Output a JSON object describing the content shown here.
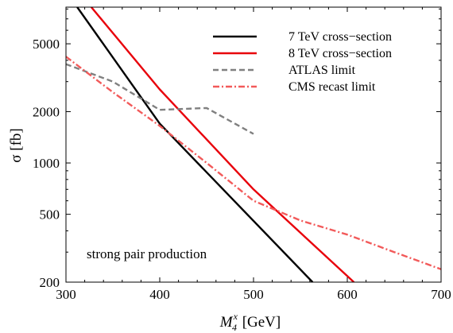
{
  "chart_data": {
    "type": "line",
    "title": "",
    "xlabel": "M",
    "xlabel_sub": "4",
    "xlabel_sup": "x",
    "xlabel_unit": " [GeV]",
    "ylabel": "σ [fb]",
    "xlim": [
      300,
      700
    ],
    "ylim": [
      200,
      8200
    ],
    "yscale": "log",
    "x_ticks": [
      300,
      400,
      500,
      600,
      700
    ],
    "y_ticks": [
      200,
      500,
      1000,
      2000,
      5000
    ],
    "legend_position": "top-right",
    "annotation": "strong pair production",
    "series": [
      {
        "name": "7 TeV cross−section",
        "color": "#000000",
        "dash": "solid",
        "x": [
          312,
          400,
          563
        ],
        "y": [
          8200,
          1700,
          200
        ]
      },
      {
        "name": "8 TeV  cross−section",
        "color": "#e8000b",
        "dash": "solid",
        "x": [
          327,
          400,
          500,
          607
        ],
        "y": [
          8200,
          2700,
          700,
          200
        ]
      },
      {
        "name": "ATLAS limit",
        "color": "#808080",
        "dash": "dashed",
        "x": [
          300,
          350,
          400,
          450,
          500
        ],
        "y": [
          3800,
          3000,
          2050,
          2100,
          1480
        ]
      },
      {
        "name": "CMS recast limit",
        "color": "#f25a5a",
        "dash": "dashdot",
        "x": [
          300,
          350,
          400,
          450,
          500,
          550,
          600,
          650,
          700
        ],
        "y": [
          4200,
          2600,
          1650,
          1000,
          600,
          460,
          380,
          300,
          238
        ]
      }
    ]
  }
}
